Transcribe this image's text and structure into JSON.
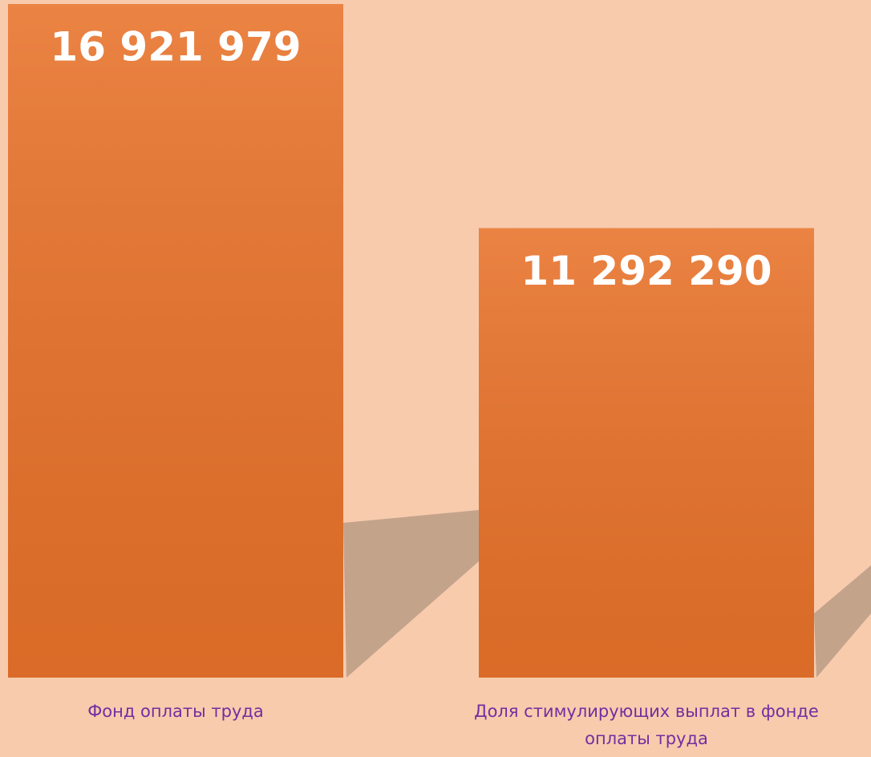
{
  "chart_data": {
    "type": "bar",
    "categories": [
      "Фонд оплаты труда",
      "Доля стимулирующих выплат в фонде оплаты труда"
    ],
    "values": [
      16921979,
      11292290
    ],
    "value_labels": [
      "16 921 979",
      "11 292 290"
    ],
    "color": "#e8722a"
  }
}
